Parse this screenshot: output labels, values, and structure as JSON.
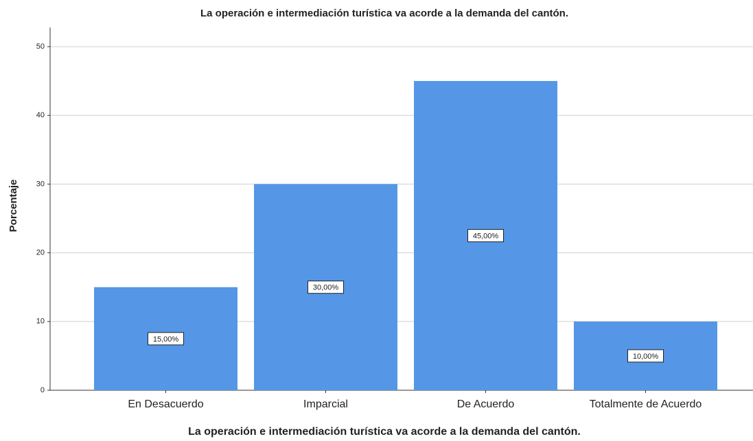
{
  "chart_data": {
    "type": "bar",
    "title": "La operación e intermediación turística va acorde a la demanda del cantón.",
    "x_label": "La operación e intermediación turística va acorde a la demanda del cantón.",
    "y_label": "Porcentaje",
    "categories": [
      "En Desacuerdo",
      "Imparcial",
      "De Acuerdo",
      "Totalmente de Acuerdo"
    ],
    "values": [
      15,
      30,
      45,
      10
    ],
    "value_labels": [
      "15,00%",
      "30,00%",
      "45,00%",
      "10,00%"
    ],
    "color": "#5596e6",
    "ylim": [
      0,
      50
    ],
    "yticks": [
      0,
      10,
      20,
      30,
      40,
      50
    ],
    "grid": true
  }
}
